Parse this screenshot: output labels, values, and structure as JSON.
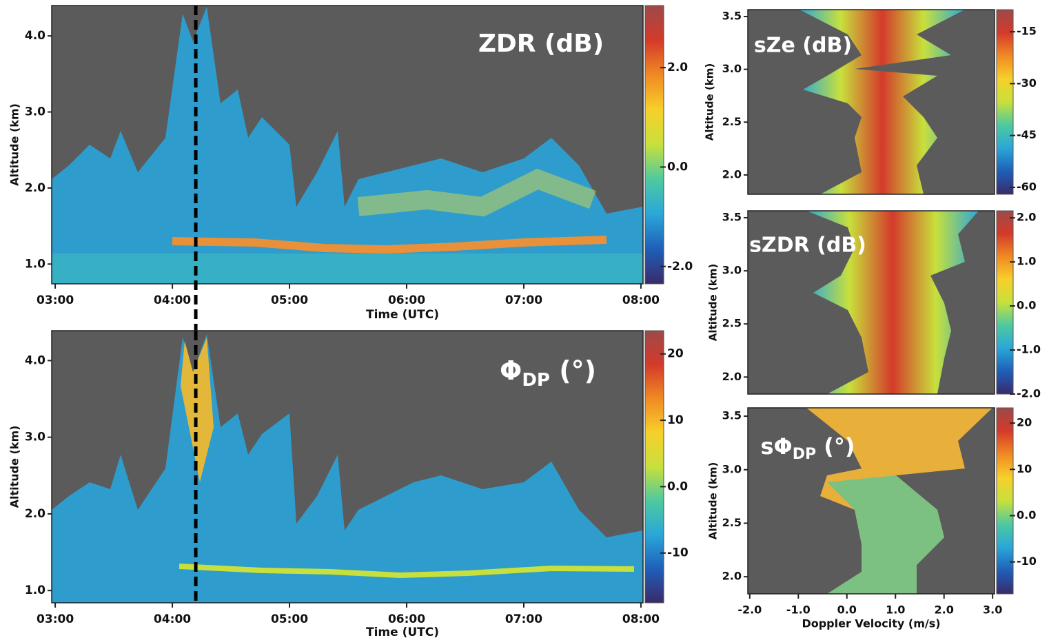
{
  "chart_data": [
    {
      "type": "heatmap",
      "title": "ZDR (dB)",
      "x_label": "Time (UTC)",
      "y_label": "Altitude (km)",
      "xlim": [
        2.97,
        8.018
      ],
      "xticks": [
        {
          "value": 3,
          "label": "03:00"
        },
        {
          "value": 4,
          "label": "04:00"
        },
        {
          "value": 5,
          "label": "05:00"
        },
        {
          "value": 6,
          "label": "06:00"
        },
        {
          "value": 7,
          "label": "07:00"
        },
        {
          "value": 8,
          "label": "08:00"
        }
      ],
      "ylim": [
        0.74,
        4.4
      ],
      "yticks": [
        {
          "value": 1,
          "label": "1.0"
        },
        {
          "value": 2,
          "label": "2.0"
        },
        {
          "value": 3,
          "label": "3.0"
        },
        {
          "value": 4,
          "label": "4.0"
        }
      ],
      "clim": [
        -2.35,
        3.25
      ],
      "cticks": [
        {
          "value": 2,
          "label": "2.0"
        },
        {
          "value": 0,
          "label": "0.0"
        },
        {
          "value": -2,
          "label": "-2.0"
        }
      ],
      "colormap": [
        "#3a2a6a",
        "#1f5fb8",
        "#2aa7d8",
        "#4ec9a0",
        "#c8e03c",
        "#f7d02a",
        "#f08a24",
        "#d43a2a",
        "#9c4a4a"
      ],
      "vline": 4.2
    },
    {
      "type": "heatmap",
      "title": "Φ",
      "title_sub": "DP",
      "title_end": " (°)",
      "x_label": "Time (UTC)",
      "y_label": "Altitude (km)",
      "xlim": [
        2.97,
        8.018
      ],
      "xticks": [
        {
          "value": 3,
          "label": "03:00"
        },
        {
          "value": 4,
          "label": "04:00"
        },
        {
          "value": 5,
          "label": "05:00"
        },
        {
          "value": 6,
          "label": "06:00"
        },
        {
          "value": 7,
          "label": "07:00"
        },
        {
          "value": 8,
          "label": "08:00"
        }
      ],
      "ylim": [
        0.84,
        4.39
      ],
      "yticks": [
        {
          "value": 1,
          "label": "1.0"
        },
        {
          "value": 2,
          "label": "2.0"
        },
        {
          "value": 3,
          "label": "3.0"
        },
        {
          "value": 4,
          "label": "4.0"
        }
      ],
      "clim": [
        -17.5,
        23.5
      ],
      "cticks": [
        20,
        10,
        {
          "value": 0,
          "label": "0.0"
        },
        -10
      ],
      "colormap": [
        "#3a2a6a",
        "#1f5fb8",
        "#2aa7d8",
        "#4ec9a0",
        "#c8e03c",
        "#f7d02a",
        "#f08a24",
        "#d43a2a",
        "#9c4a4a"
      ],
      "vline": 4.2
    },
    {
      "type": "heatmap",
      "title": "sZe (dB)",
      "y_label": "Altitude (km)",
      "xlim": [
        -2.04,
        3.04
      ],
      "ylim": [
        1.817,
        3.565
      ],
      "yticks": [
        {
          "value": 2,
          "label": "2.0"
        },
        {
          "value": 2.5,
          "label": "2.5"
        },
        {
          "value": 3,
          "label": "3.0"
        },
        {
          "value": 3.5,
          "label": "3.5"
        }
      ],
      "clim": [
        -62,
        -8.6
      ],
      "cticks": [
        -15,
        -30,
        -45,
        -60
      ],
      "colormap": [
        "#3a2a6a",
        "#1f5fb8",
        "#2aa7d8",
        "#4ec9a0",
        "#c8e03c",
        "#f7d02a",
        "#f08a24",
        "#d43a2a",
        "#9c4a4a"
      ]
    },
    {
      "type": "heatmap",
      "title": "sZDR (dB)",
      "y_label": "Altitude (km)",
      "xlim": [
        -2.04,
        3.04
      ],
      "ylim": [
        1.84,
        3.565
      ],
      "yticks": [
        {
          "value": 2,
          "label": "2.0"
        },
        {
          "value": 2.5,
          "label": "2.5"
        },
        {
          "value": 3,
          "label": "3.0"
        },
        {
          "value": 3.5,
          "label": "3.5"
        }
      ],
      "clim": [
        -2.0,
        2.16
      ],
      "cticks": [
        {
          "value": 2,
          "label": "2.0"
        },
        {
          "value": 1,
          "label": "1.0"
        },
        {
          "value": 0,
          "label": "0.0"
        },
        {
          "value": -1,
          "label": "-1.0"
        },
        {
          "value": -2,
          "label": "-2.0"
        }
      ],
      "colormap": [
        "#3a2a6a",
        "#1f5fb8",
        "#2aa7d8",
        "#4ec9a0",
        "#c8e03c",
        "#f7d02a",
        "#f08a24",
        "#d43a2a",
        "#9c4a4a"
      ]
    },
    {
      "type": "heatmap",
      "title": "sΦ",
      "title_sub": "DP",
      "title_end": " (°)",
      "x_label": "Doppler Velocity (m/s)",
      "y_label": "Altitude (km)",
      "xlim": [
        -2.04,
        3.04
      ],
      "xticks": [
        {
          "value": -2,
          "label": "-2.0"
        },
        {
          "value": -1,
          "label": "-1.0"
        },
        {
          "value": 0,
          "label": "0.0"
        },
        {
          "value": 1,
          "label": "1.0"
        },
        {
          "value": 2,
          "label": "2.0"
        },
        {
          "value": 3,
          "label": "3.0"
        }
      ],
      "ylim": [
        1.84,
        3.578
      ],
      "yticks": [
        {
          "value": 2,
          "label": "2.0"
        },
        {
          "value": 2.5,
          "label": "2.5"
        },
        {
          "value": 3,
          "label": "3.0"
        },
        {
          "value": 3.5,
          "label": "3.5"
        }
      ],
      "clim": [
        -16.9,
        23.3
      ],
      "cticks": [
        20,
        10,
        {
          "value": 0,
          "label": "0.0"
        },
        -10
      ],
      "colormap": [
        "#3a2a6a",
        "#1f5fb8",
        "#2aa7d8",
        "#4ec9a0",
        "#c8e03c",
        "#f7d02a",
        "#f08a24",
        "#d43a2a",
        "#9c4a4a"
      ]
    }
  ]
}
